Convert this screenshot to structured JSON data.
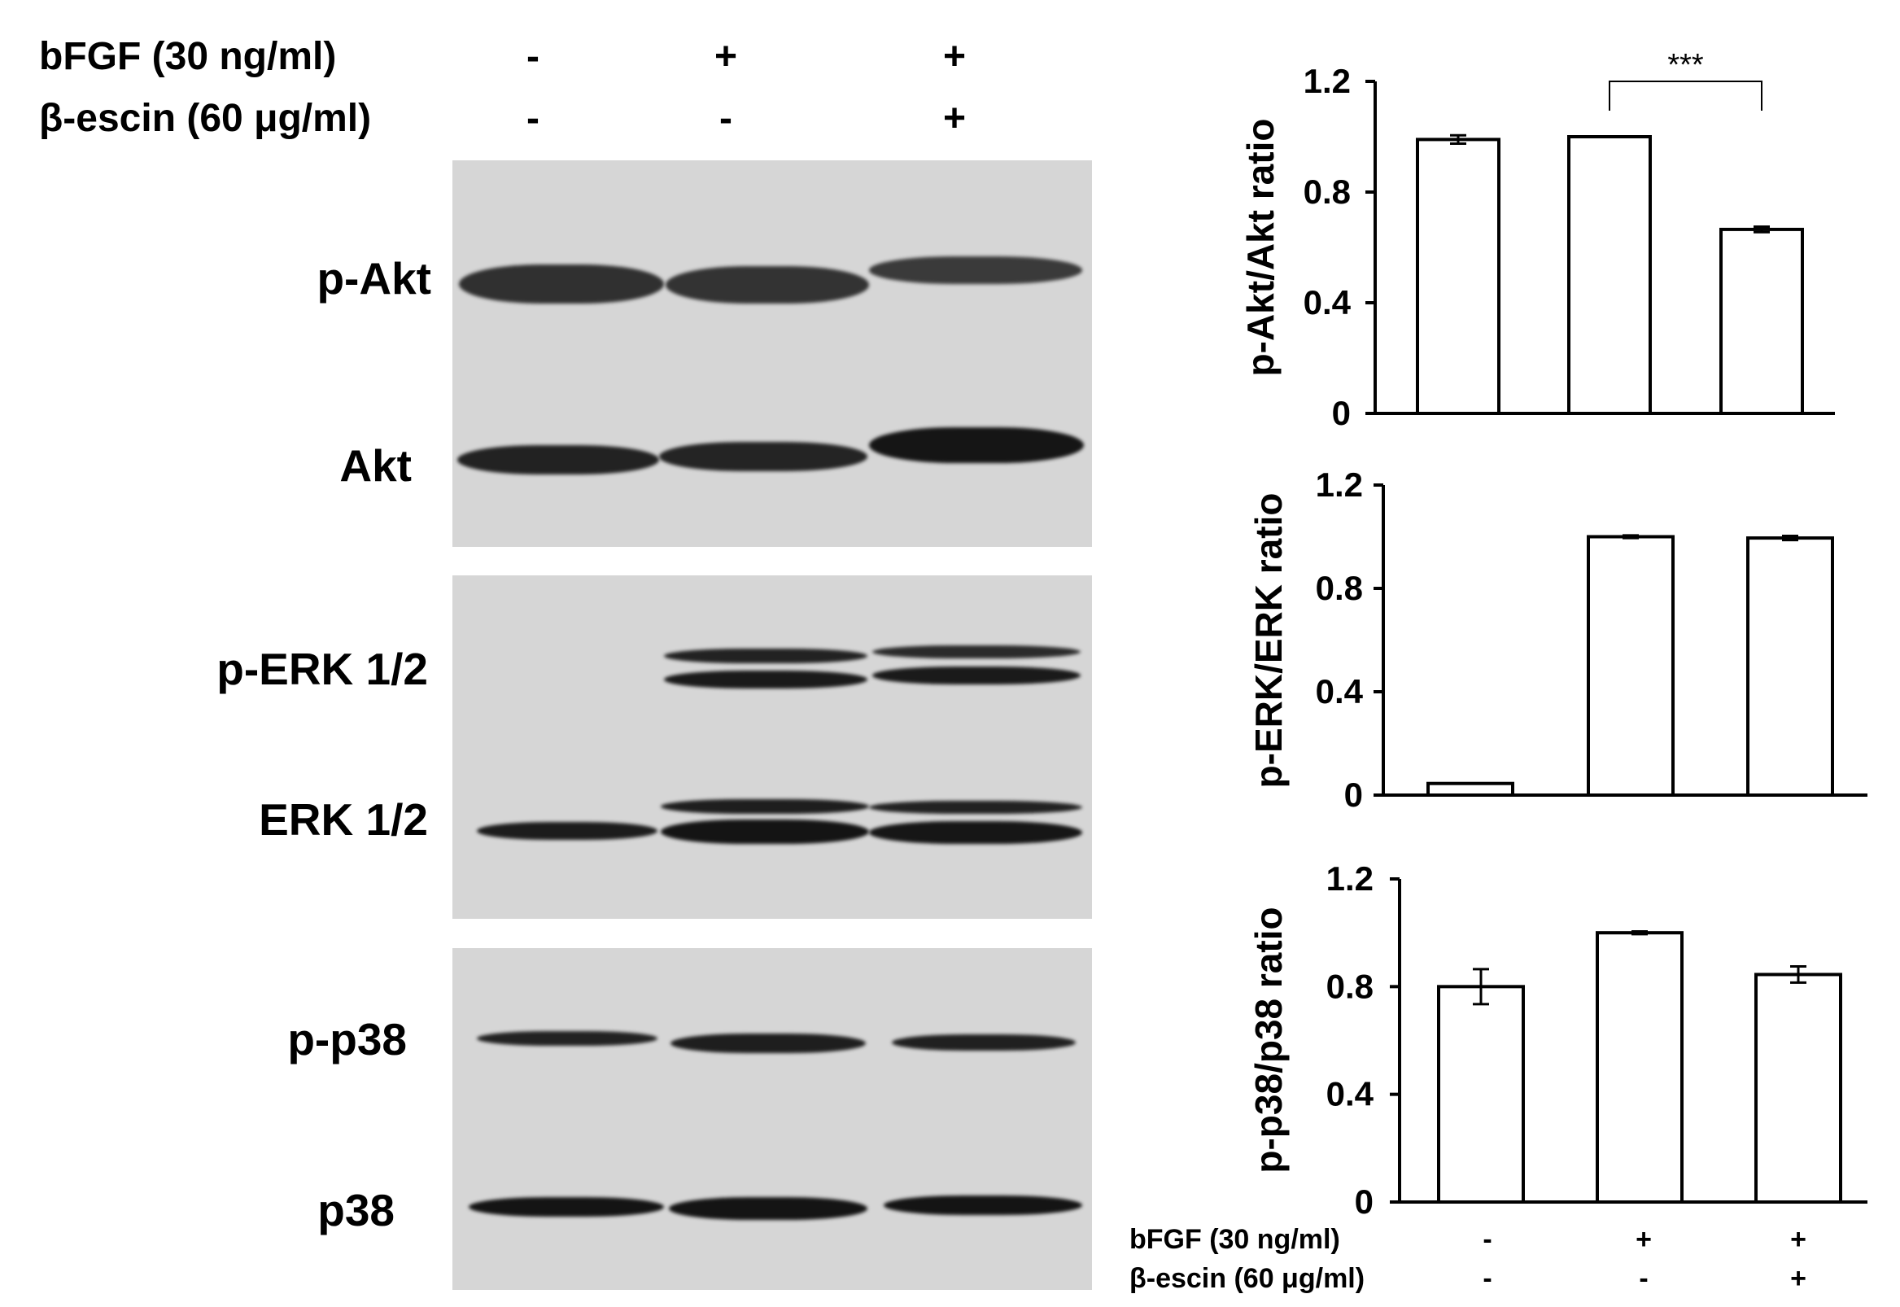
{
  "header": {
    "row1_label": "bFGF (30 ng/ml)",
    "row2_label": "β-escin (60 μg/ml)",
    "row1_signs": [
      "-",
      "+",
      "+"
    ],
    "row2_signs": [
      "-",
      "-",
      "+"
    ]
  },
  "blots": {
    "labels": [
      "p-Akt",
      "Akt",
      "p-ERK 1/2",
      "ERK 1/2",
      "p-p38",
      "p38"
    ]
  },
  "footer": {
    "row1_label": "bFGF (30 ng/ml)",
    "row2_label": "β-escin (60 μg/ml)",
    "row1_signs": [
      "-",
      "+",
      "+"
    ],
    "row2_signs": [
      "-",
      "-",
      "+"
    ]
  },
  "colors": {
    "bar_fill": "#ffffff",
    "bar_stroke": "#000000",
    "blot_bg": "#d6d6d6",
    "band": "#2a2a2a"
  },
  "chart_data": [
    {
      "type": "bar",
      "categories": [
        "1",
        "2",
        "3"
      ],
      "values": [
        0.99,
        1.0,
        0.665
      ],
      "errors": [
        0.015,
        0.0,
        0.01
      ],
      "ylabel": "p-Akt/Akt ratio",
      "yticks": [
        "0",
        "0.4",
        "0.8",
        "1.2"
      ],
      "ylim": [
        0,
        1.2
      ],
      "annotation": "***"
    },
    {
      "type": "bar",
      "categories": [
        "1",
        "2",
        "3"
      ],
      "values": [
        0.045,
        1.0,
        0.995
      ],
      "errors": [
        0.0,
        0.005,
        0.008
      ],
      "ylabel": "p-ERK/ERK ratio",
      "yticks": [
        "0",
        "0.4",
        "0.8",
        "1.2"
      ],
      "ylim": [
        0,
        1.2
      ]
    },
    {
      "type": "bar",
      "categories": [
        "1",
        "2",
        "3"
      ],
      "values": [
        0.8,
        1.0,
        0.845
      ],
      "errors": [
        0.065,
        0.005,
        0.03
      ],
      "ylabel": "p-p38/p38 ratio",
      "yticks": [
        "0",
        "0.4",
        "0.8",
        "1.2"
      ],
      "ylim": [
        0,
        1.2
      ]
    }
  ]
}
